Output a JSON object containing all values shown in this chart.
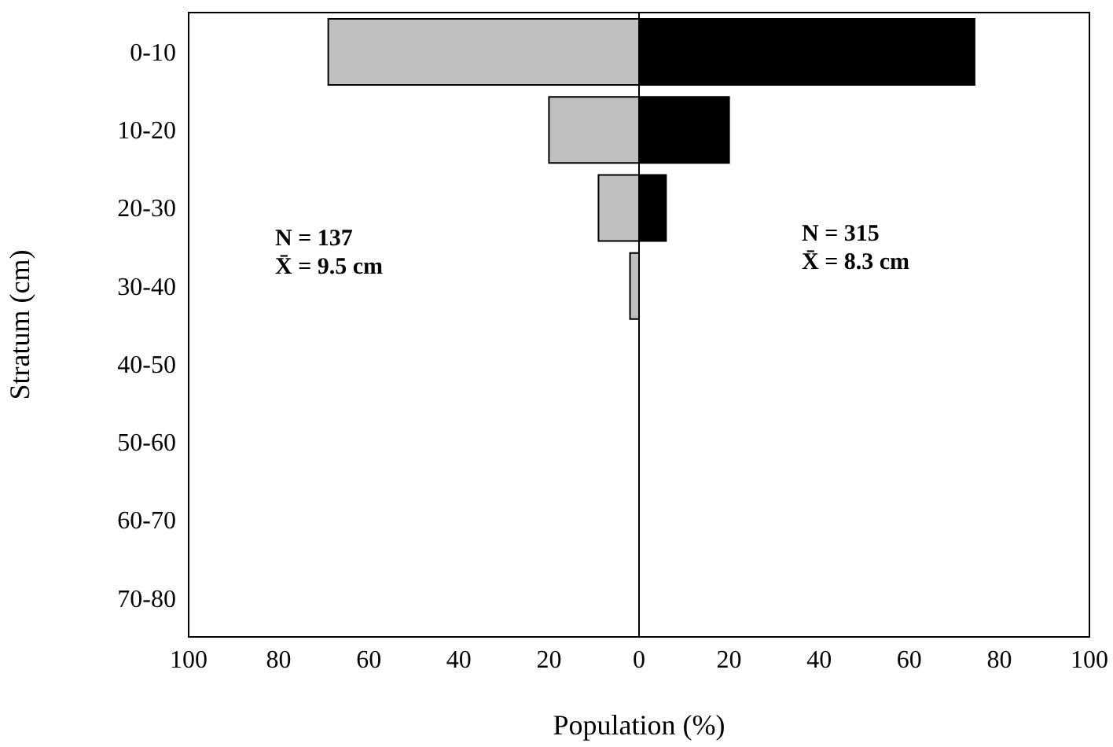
{
  "chart_data": {
    "type": "bar",
    "orientation": "horizontal",
    "stacked": true,
    "xlabel": "Population (%)",
    "ylabel": "Stratum (cm)",
    "categories": [
      "0-10",
      "10-20",
      "20-30",
      "30-40",
      "40-50",
      "50-60",
      "60-70",
      "70-80"
    ],
    "series": [
      {
        "color": "#c0c0c0",
        "values": [
          -69,
          -20,
          -9,
          -2,
          null,
          null,
          null,
          null
        ]
      },
      {
        "color": "#000000",
        "values": [
          74.5,
          20,
          6,
          null,
          null,
          null,
          null,
          null
        ]
      }
    ],
    "xlim": [
      -100,
      100
    ],
    "xticks": [
      {
        "value": -100,
        "label": "100"
      },
      {
        "value": -80,
        "label": "80"
      },
      {
        "value": -60,
        "label": "60"
      },
      {
        "value": -40,
        "label": "40"
      },
      {
        "value": -20,
        "label": "20"
      },
      0,
      20,
      40,
      60,
      80,
      100
    ],
    "ref_lines": [
      {
        "axis": "x",
        "value": 0
      }
    ],
    "annotations": [
      "N = 137\nX̄ = 9.5 cm",
      "N = 315\nX̄ = 8.3 cm"
    ],
    "grid": false,
    "legend": false
  }
}
